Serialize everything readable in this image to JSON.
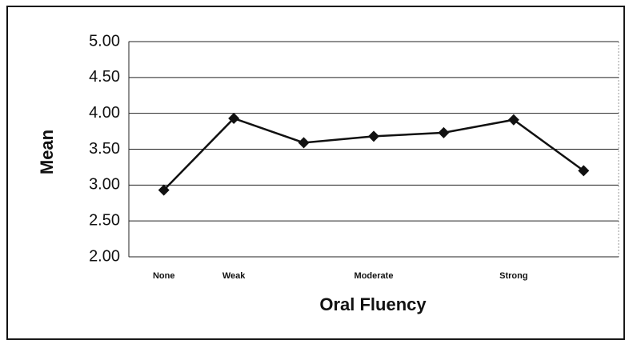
{
  "chart_data": {
    "type": "line",
    "x_label": "Oral Fluency",
    "y_label": "Mean",
    "categories": [
      "None",
      "Weak",
      null,
      "Moderate",
      null,
      "Strong",
      null
    ],
    "series": [
      {
        "name": null,
        "color": "#111111",
        "values": [
          2.93,
          3.93,
          3.59,
          3.68,
          3.73,
          3.91,
          3.2
        ]
      }
    ],
    "ylim": [
      2,
      5
    ],
    "yticks": [
      {
        "value": 2,
        "label": "2.00"
      },
      {
        "value": 2.5,
        "label": "2.50"
      },
      {
        "value": 3,
        "label": "3.00"
      },
      {
        "value": 3.5,
        "label": "3.50"
      },
      {
        "value": 4,
        "label": "4.00"
      },
      {
        "value": 4.5,
        "label": "4.50"
      },
      {
        "value": 5,
        "label": "5.00"
      }
    ],
    "grid": true
  }
}
